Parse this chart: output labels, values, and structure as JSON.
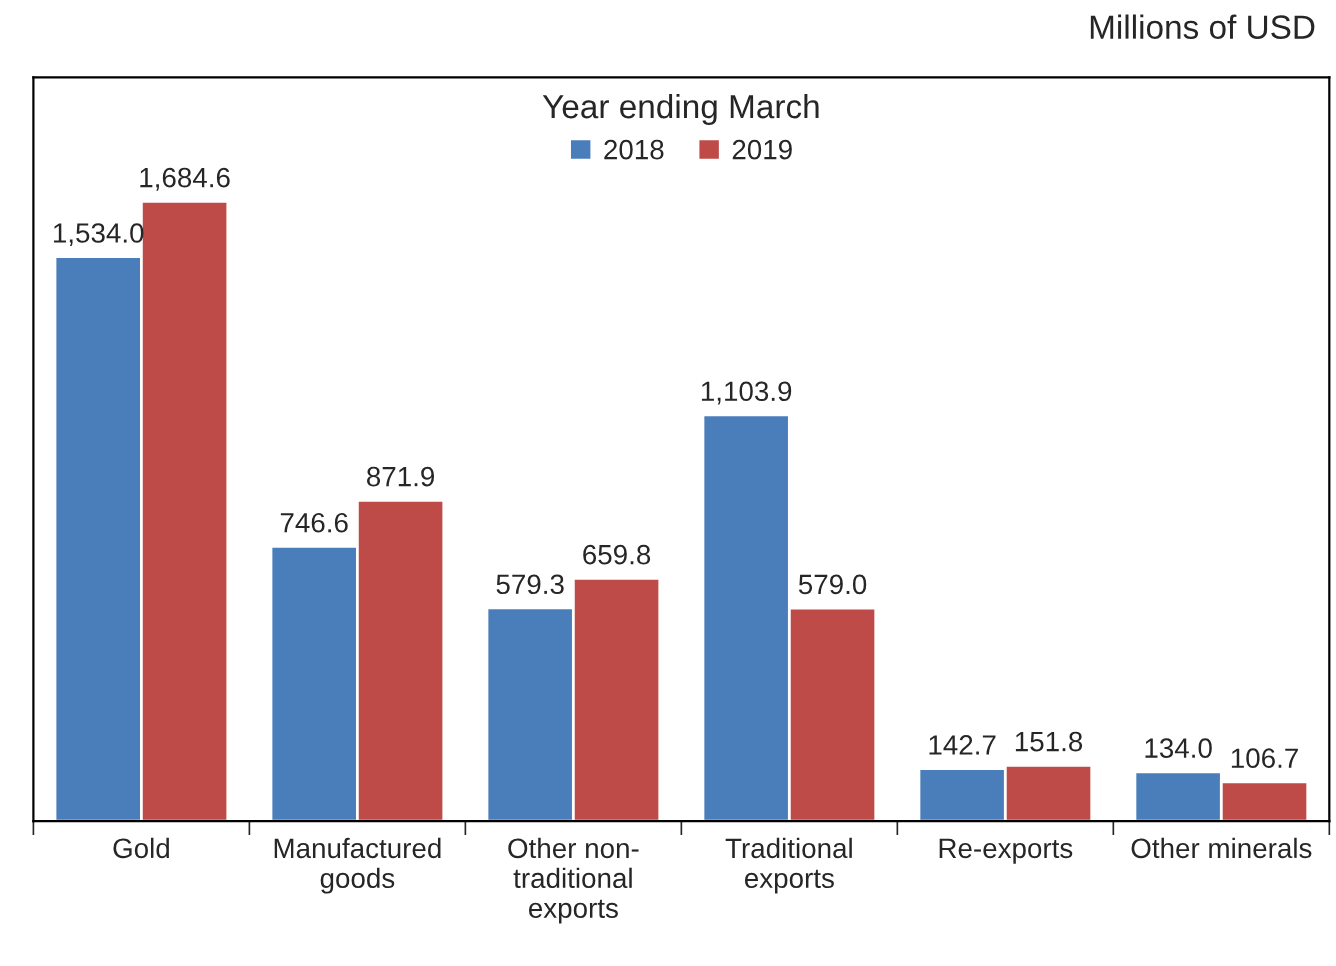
{
  "chart_data": {
    "type": "bar",
    "categories": [
      "Gold",
      "Manufactured\ngoods",
      "Other non-\ntraditional\nexports",
      "Traditional\nexports",
      "Re-exports",
      "Other minerals"
    ],
    "series": [
      {
        "name": "2018",
        "color": "#4a7ebb",
        "values": [
          1534.0,
          746.6,
          579.3,
          1103.9,
          142.7,
          134.0
        ],
        "value_labels": [
          "1,534.0",
          "746.6",
          "579.3",
          "1,103.9",
          "142.7",
          "134.0"
        ]
      },
      {
        "name": "2019",
        "color": "#be4b48",
        "values": [
          1684.6,
          871.9,
          659.8,
          579.0,
          151.8,
          106.7
        ],
        "value_labels": [
          "1,684.6",
          "871.9",
          "659.8",
          "579.0",
          "151.8",
          "106.7"
        ]
      }
    ],
    "legend_title": "Year ending March",
    "legend": "top",
    "annotations": [
      "Millions of USD"
    ]
  }
}
